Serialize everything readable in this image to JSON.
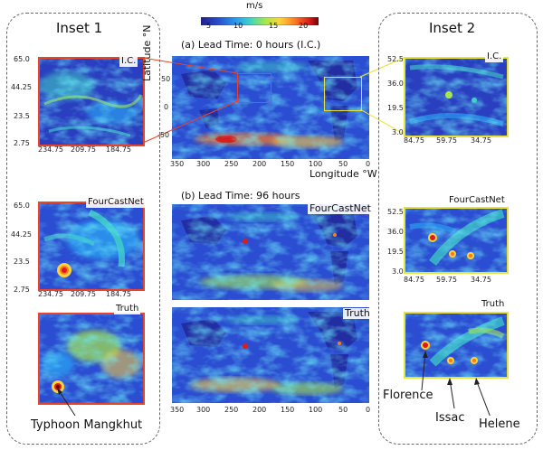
{
  "colorbar": {
    "unit": "m/s",
    "ticks": [
      "5",
      "10",
      "15",
      "20"
    ],
    "colors": [
      "#1f1f8f",
      "#2b4dd1",
      "#2a9df0",
      "#3fd3c4",
      "#a6e84a",
      "#ffd23c",
      "#ff7a1e",
      "#d81d1d",
      "#7a0000"
    ]
  },
  "inset1": {
    "title": "Inset 1",
    "frame_color": "#e8432b",
    "yticks": [
      "65.0",
      "44.25",
      "23.5",
      "2.75"
    ],
    "xticks": [
      "234.75",
      "209.75",
      "184.75"
    ],
    "panels": [
      "I.C.",
      "FourCastNet",
      "Truth"
    ],
    "annotation": "Typhoon Mangkhut"
  },
  "inset2": {
    "title": "Inset 2",
    "frame_color": "#e8e23a",
    "yticks": [
      "52.5",
      "36.0",
      "19.5",
      "3.0"
    ],
    "xticks": [
      "84.75",
      "59.75",
      "34.75"
    ],
    "panels": [
      "I.C.",
      "FourCastNet",
      "Truth"
    ],
    "annotations": [
      "Florence",
      "Issac",
      "Helene"
    ]
  },
  "center": {
    "label_a": "(a) Lead Time: 0 hours (I.C.)",
    "label_b": "(b) Lead Time: 96 hours",
    "panel_fcn": "FourCastNet",
    "panel_truth": "Truth",
    "ylabel": "Latitude °N",
    "xlabel": "Longitude °W",
    "yticks": [
      "50",
      "0",
      "-50"
    ],
    "xticks": [
      "350",
      "300",
      "250",
      "200",
      "150",
      "100",
      "50",
      "0"
    ]
  }
}
